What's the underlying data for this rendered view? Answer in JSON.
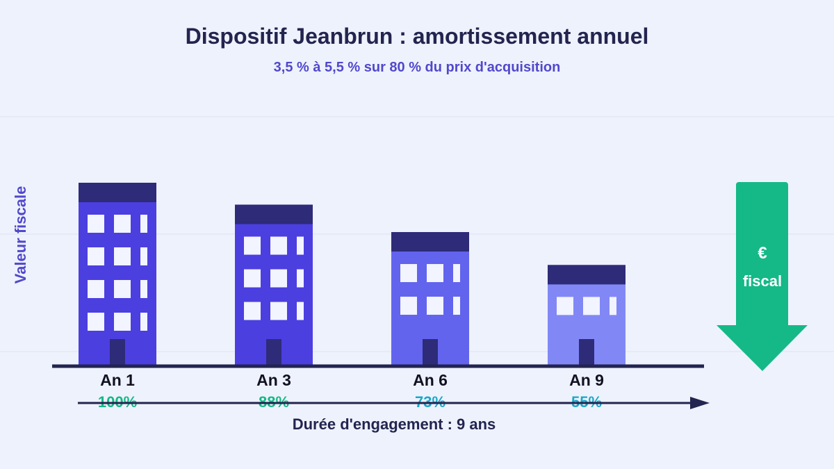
{
  "chart_data": {
    "type": "bar",
    "title": "Dispositif Jeanbrun : amortissement annuel",
    "subtitle": "3,5 % à 5,5 % sur 80 % du prix d'acquisition",
    "ylabel": "Valeur fiscale",
    "xlabel": "Durée d'engagement : 9 ans",
    "categories": [
      "An 1",
      "An 3",
      "An 6",
      "An 9"
    ],
    "values": [
      100,
      88,
      73,
      55
    ],
    "value_labels": [
      "100%",
      "88%",
      "73%",
      "55%"
    ],
    "ylim": [
      0,
      100
    ],
    "grid": true,
    "colors": {
      "bars": [
        "#4b3fe0",
        "#4b3fe0",
        "#6264ee",
        "#8188f5"
      ],
      "roof": "#2e2b78",
      "value_labels": [
        "#14b987",
        "#14b987",
        "#1aa8c9",
        "#1aa8c9"
      ],
      "arrow": "#14b987",
      "axis": "#23244f"
    }
  },
  "arrow_badge": {
    "symbol": "€",
    "text": "fiscal"
  }
}
